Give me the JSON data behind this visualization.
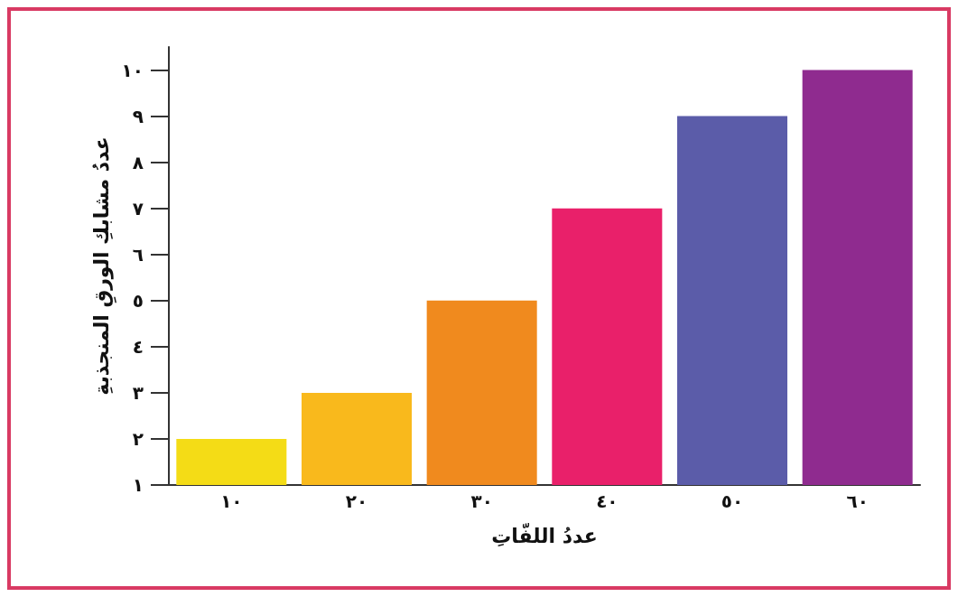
{
  "chart_data": {
    "type": "bar",
    "xlabel": "عددُ اللفّاتِ",
    "ylabel": "عددُ مشابكِ الورقِ المنجذبةِ",
    "categories": [
      "١٠",
      "٢٠",
      "٣٠",
      "٤٠",
      "٥٠",
      "٦٠"
    ],
    "values": [
      2,
      3,
      5,
      7,
      9,
      10
    ],
    "colors": [
      "#f4dc16",
      "#f9b91c",
      "#f08a1e",
      "#e9206a",
      "#5b5ca9",
      "#8f2b8f"
    ],
    "ylim": [
      1,
      10.5
    ],
    "yticks": [
      {
        "value": 1,
        "label": "١"
      },
      {
        "value": 2,
        "label": "٢"
      },
      {
        "value": 3,
        "label": "٣"
      },
      {
        "value": 4,
        "label": "٤"
      },
      {
        "value": 5,
        "label": "٥"
      },
      {
        "value": 6,
        "label": "٦"
      },
      {
        "value": 7,
        "label": "٧"
      },
      {
        "value": 8,
        "label": "٨"
      },
      {
        "value": 9,
        "label": "٩"
      },
      {
        "value": 10,
        "label": "١٠"
      }
    ],
    "grid": false
  }
}
